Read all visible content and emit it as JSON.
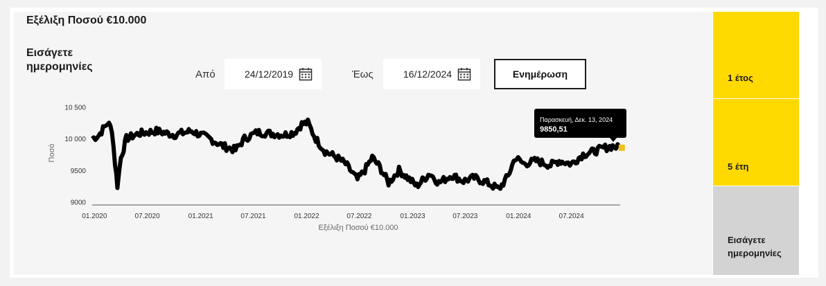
{
  "widget": {
    "title": "Εξέλιξη Ποσού €10.000",
    "prompt": "Εισάγετε ημερομηνίες",
    "from_label": "Από",
    "from_value": "24/12/2019",
    "to_label": "Έως",
    "to_value": "16/12/2024",
    "update_label": "Ενημέρωση"
  },
  "side_tabs": [
    {
      "label": "1 έτος",
      "color": "#ffd900"
    },
    {
      "label": "5 έτη",
      "color": "#ffd900"
    },
    {
      "label": "Εισάγετε ημερομηνίες",
      "color": "#d3d3d3"
    }
  ],
  "tooltip": {
    "date": "Παρασκευή, Δεκ. 13, 2024",
    "value": "9850,51"
  },
  "chart_data": {
    "type": "line",
    "xlabel": "Εξέλιξη Ποσού €10.000",
    "ylabel": "Ποσό",
    "ylim": [
      8950,
      10550
    ],
    "yticks": [
      {
        "value": 9000,
        "label": "9000"
      },
      {
        "value": 9500,
        "label": "9500"
      },
      {
        "value": 10000,
        "label": "10 000"
      },
      {
        "value": 10500,
        "label": "10 500"
      }
    ],
    "xticks": [
      {
        "date": "2020-01-01",
        "label": "01.2020"
      },
      {
        "date": "2020-07-01",
        "label": "07.2020"
      },
      {
        "date": "2021-01-01",
        "label": "01.2021"
      },
      {
        "date": "2021-07-01",
        "label": "07.2021"
      },
      {
        "date": "2022-01-01",
        "label": "01.2022"
      },
      {
        "date": "2022-07-01",
        "label": "07.2022"
      },
      {
        "date": "2023-01-01",
        "label": "01.2023"
      },
      {
        "date": "2023-07-01",
        "label": "07.2023"
      },
      {
        "date": "2024-01-01",
        "label": "01.2024"
      },
      {
        "date": "2024-07-01",
        "label": "07.2024"
      }
    ],
    "xrange": [
      "2019-12-24",
      "2024-12-16"
    ],
    "line_color": "#000000",
    "marker_color": "#f0c020",
    "series": [
      {
        "points": [
          [
            "2019-12-24",
            10000
          ],
          [
            "2020-01-15",
            10050
          ],
          [
            "2020-02-15",
            10250
          ],
          [
            "2020-03-01",
            10150
          ],
          [
            "2020-03-12",
            9600
          ],
          [
            "2020-03-20",
            9260
          ],
          [
            "2020-04-01",
            9700
          ],
          [
            "2020-04-20",
            10000
          ],
          [
            "2020-06-01",
            10080
          ],
          [
            "2020-08-01",
            10120
          ],
          [
            "2020-10-01",
            10060
          ],
          [
            "2020-12-01",
            10120
          ],
          [
            "2021-02-01",
            10000
          ],
          [
            "2021-03-20",
            9880
          ],
          [
            "2021-05-01",
            9820
          ],
          [
            "2021-06-01",
            10000
          ],
          [
            "2021-07-15",
            10100
          ],
          [
            "2021-09-01",
            10080
          ],
          [
            "2021-10-15",
            10060
          ],
          [
            "2021-11-20",
            10100
          ],
          [
            "2021-12-15",
            10230
          ],
          [
            "2022-01-05",
            10250
          ],
          [
            "2022-02-01",
            10000
          ],
          [
            "2022-03-05",
            9800
          ],
          [
            "2022-04-15",
            9700
          ],
          [
            "2022-05-15",
            9600
          ],
          [
            "2022-06-25",
            9350
          ],
          [
            "2022-07-20",
            9500
          ],
          [
            "2022-08-15",
            9700
          ],
          [
            "2022-09-10",
            9550
          ],
          [
            "2022-10-10",
            9300
          ],
          [
            "2022-11-15",
            9500
          ],
          [
            "2022-12-10",
            9400
          ],
          [
            "2023-01-15",
            9250
          ],
          [
            "2023-03-01",
            9450
          ],
          [
            "2023-04-01",
            9300
          ],
          [
            "2023-05-15",
            9420
          ],
          [
            "2023-06-25",
            9330
          ],
          [
            "2023-08-01",
            9380
          ],
          [
            "2023-09-15",
            9300
          ],
          [
            "2023-10-25",
            9200
          ],
          [
            "2023-11-25",
            9400
          ],
          [
            "2023-12-20",
            9700
          ],
          [
            "2024-01-20",
            9600
          ],
          [
            "2024-03-01",
            9650
          ],
          [
            "2024-04-20",
            9580
          ],
          [
            "2024-05-20",
            9650
          ],
          [
            "2024-07-01",
            9600
          ],
          [
            "2024-08-10",
            9750
          ],
          [
            "2024-09-20",
            9800
          ],
          [
            "2024-10-20",
            9850
          ],
          [
            "2024-11-20",
            9880
          ],
          [
            "2024-12-13",
            9850.51
          ]
        ]
      }
    ]
  }
}
